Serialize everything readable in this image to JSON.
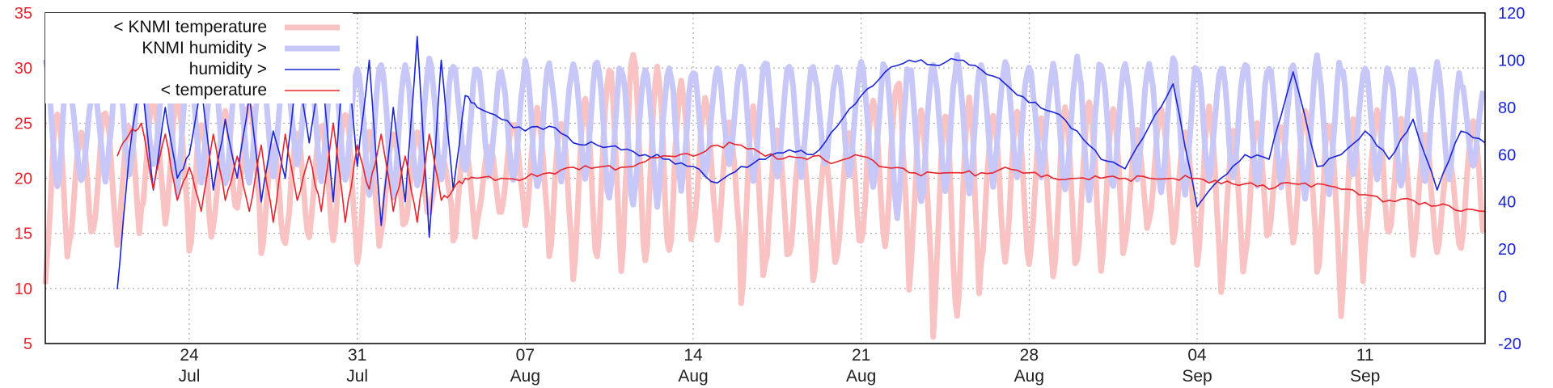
{
  "chart_data": {
    "type": "line",
    "grid": true,
    "legend_position": "top-left",
    "x_range": [
      "2025-07-18",
      "2025-09-16"
    ],
    "y_left": {
      "range": [
        5,
        35
      ],
      "ticks": [
        5,
        10,
        15,
        20,
        25,
        30,
        35
      ],
      "color": "#e8242c"
    },
    "y_right": {
      "range": [
        -20,
        120
      ],
      "ticks": [
        -20,
        0,
        20,
        40,
        60,
        80,
        100,
        120
      ],
      "color": "#1a24d8"
    },
    "x_ticks": [
      {
        "date": "2025-07-24",
        "day": "24",
        "month": "Jul"
      },
      {
        "date": "2025-07-31",
        "day": "31",
        "month": "Jul"
      },
      {
        "date": "2025-08-07",
        "day": "07",
        "month": "Aug"
      },
      {
        "date": "2025-08-14",
        "day": "14",
        "month": "Aug"
      },
      {
        "date": "2025-08-21",
        "day": "21",
        "month": "Aug"
      },
      {
        "date": "2025-08-28",
        "day": "28",
        "month": "Aug"
      },
      {
        "date": "2025-09-04",
        "day": "04",
        "month": "Sep"
      },
      {
        "date": "2025-09-11",
        "day": "11",
        "month": "Sep"
      }
    ],
    "series": [
      {
        "name": "< KNMI temperature",
        "axis": "left",
        "color": "#f9c3c3",
        "width": 7,
        "x": [
          "2025-07-18",
          "2025-07-19",
          "2025-07-20",
          "2025-07-21",
          "2025-07-22",
          "2025-07-23",
          "2025-07-24",
          "2025-07-25",
          "2025-07-26",
          "2025-07-27",
          "2025-07-28",
          "2025-07-29",
          "2025-07-30",
          "2025-07-31",
          "2025-08-01",
          "2025-08-02",
          "2025-08-03",
          "2025-08-04",
          "2025-08-05",
          "2025-08-06",
          "2025-08-07",
          "2025-08-08",
          "2025-08-09",
          "2025-08-10",
          "2025-08-11",
          "2025-08-12",
          "2025-08-13",
          "2025-08-14",
          "2025-08-15",
          "2025-08-16",
          "2025-08-17",
          "2025-08-18",
          "2025-08-19",
          "2025-08-20",
          "2025-08-21",
          "2025-08-22",
          "2025-08-23",
          "2025-08-24",
          "2025-08-25",
          "2025-08-26",
          "2025-08-27",
          "2025-08-28",
          "2025-08-29",
          "2025-08-30",
          "2025-08-31",
          "2025-09-01",
          "2025-09-02",
          "2025-09-03",
          "2025-09-04",
          "2025-09-05",
          "2025-09-06",
          "2025-09-07",
          "2025-09-08",
          "2025-09-09",
          "2025-09-10",
          "2025-09-11",
          "2025-09-12",
          "2025-09-13",
          "2025-09-14",
          "2025-09-15"
        ],
        "min": [
          11,
          14,
          15,
          14,
          17,
          16,
          13,
          16,
          17,
          13,
          14,
          15,
          14,
          12,
          15,
          16,
          17,
          14,
          16,
          17,
          16,
          13,
          11,
          13,
          12,
          12,
          13,
          15,
          14,
          9,
          12,
          13,
          11,
          13,
          14,
          14,
          10,
          6,
          7,
          12,
          12,
          12,
          11,
          13,
          12,
          14,
          16,
          14,
          12,
          10,
          13,
          15,
          14,
          11,
          8,
          14,
          15,
          13,
          13,
          14
        ],
        "max": [
          26,
          24,
          26,
          25,
          27,
          27,
          25,
          26,
          27,
          23,
          24,
          25,
          26,
          24,
          24,
          24,
          22,
          23,
          23,
          25,
          26,
          25,
          27,
          30,
          31,
          30,
          29,
          27,
          25,
          26,
          24,
          23,
          22,
          24,
          27,
          29,
          26,
          26,
          27,
          26,
          26,
          25,
          26,
          27,
          26,
          24,
          26,
          24,
          26,
          24,
          25,
          25,
          26,
          25,
          25,
          26,
          25,
          24,
          22,
          25
        ]
      },
      {
        "name": "KNMI humidity >",
        "axis": "right",
        "color": "#c8c8f8",
        "width": 7,
        "x": [
          "2025-07-18",
          "2025-07-19",
          "2025-07-20",
          "2025-07-21",
          "2025-07-22",
          "2025-07-23",
          "2025-07-24",
          "2025-07-25",
          "2025-07-26",
          "2025-07-27",
          "2025-07-28",
          "2025-07-29",
          "2025-07-30",
          "2025-07-31",
          "2025-08-01",
          "2025-08-02",
          "2025-08-03",
          "2025-08-04",
          "2025-08-05",
          "2025-08-06",
          "2025-08-07",
          "2025-08-08",
          "2025-08-09",
          "2025-08-10",
          "2025-08-11",
          "2025-08-12",
          "2025-08-13",
          "2025-08-14",
          "2025-08-15",
          "2025-08-16",
          "2025-08-17",
          "2025-08-18",
          "2025-08-19",
          "2025-08-20",
          "2025-08-21",
          "2025-08-22",
          "2025-08-23",
          "2025-08-24",
          "2025-08-25",
          "2025-08-26",
          "2025-08-27",
          "2025-08-28",
          "2025-08-29",
          "2025-08-30",
          "2025-08-31",
          "2025-09-01",
          "2025-09-02",
          "2025-09-03",
          "2025-09-04",
          "2025-09-05",
          "2025-09-06",
          "2025-09-07",
          "2025-09-08",
          "2025-09-09",
          "2025-09-10",
          "2025-09-11",
          "2025-09-12",
          "2025-09-13",
          "2025-09-14",
          "2025-09-15"
        ],
        "min": [
          45,
          48,
          50,
          52,
          55,
          45,
          50,
          46,
          48,
          52,
          55,
          50,
          48,
          45,
          42,
          45,
          48,
          52,
          50,
          48,
          45,
          50,
          48,
          40,
          38,
          40,
          45,
          50,
          55,
          48,
          50,
          52,
          55,
          50,
          45,
          35,
          40,
          45,
          42,
          48,
          50,
          52,
          45,
          40,
          45,
          50,
          42,
          45,
          48,
          50,
          45,
          48,
          42,
          45,
          50,
          48,
          45,
          48,
          50,
          55
        ],
        "max": [
          100,
          85,
          90,
          95,
          95,
          100,
          98,
          97,
          95,
          98,
          96,
          98,
          97,
          98,
          96,
          97,
          100,
          98,
          97,
          95,
          98,
          97,
          100,
          98,
          97,
          98,
          96,
          95,
          97,
          98,
          100,
          97,
          96,
          98,
          100,
          98,
          97,
          98,
          100,
          97,
          98,
          96,
          97,
          100,
          98,
          97,
          98,
          100,
          97,
          98,
          100,
          97,
          98,
          100,
          97,
          98,
          96,
          97,
          98,
          90
        ]
      },
      {
        "name": "humidity >",
        "axis": "right",
        "color": "#1a24d8",
        "width": 1.6,
        "x": [
          "2025-07-21T00",
          "2025-07-21T12",
          "2025-07-22",
          "2025-07-22T12",
          "2025-07-23",
          "2025-07-23T12",
          "2025-07-24",
          "2025-07-24T12",
          "2025-07-25",
          "2025-07-25T12",
          "2025-07-26",
          "2025-07-26T12",
          "2025-07-27",
          "2025-07-27T12",
          "2025-07-28",
          "2025-07-28T12",
          "2025-07-29",
          "2025-07-29T12",
          "2025-07-30",
          "2025-07-30T12",
          "2025-07-31",
          "2025-07-31T12",
          "2025-08-01",
          "2025-08-01T12",
          "2025-08-02",
          "2025-08-02T12",
          "2025-08-03",
          "2025-08-03T12",
          "2025-08-04",
          "2025-08-04T12",
          "2025-08-05",
          "2025-08-06",
          "2025-08-07",
          "2025-08-08",
          "2025-08-09",
          "2025-08-10",
          "2025-08-11",
          "2025-08-12",
          "2025-08-13",
          "2025-08-14",
          "2025-08-15",
          "2025-08-16",
          "2025-08-17",
          "2025-08-18",
          "2025-08-19",
          "2025-08-20",
          "2025-08-21",
          "2025-08-22",
          "2025-08-23",
          "2025-08-24",
          "2025-08-25",
          "2025-08-26",
          "2025-08-27",
          "2025-08-28",
          "2025-08-29",
          "2025-08-30",
          "2025-08-31",
          "2025-09-01",
          "2025-09-02",
          "2025-09-03",
          "2025-09-04",
          "2025-09-05",
          "2025-09-06",
          "2025-09-07",
          "2025-09-08",
          "2025-09-09",
          "2025-09-10",
          "2025-09-11",
          "2025-09-12",
          "2025-09-13",
          "2025-09-14",
          "2025-09-15",
          "2025-09-16"
        ],
        "values": [
          3,
          60,
          95,
          45,
          80,
          50,
          60,
          90,
          45,
          75,
          50,
          85,
          40,
          70,
          50,
          98,
          65,
          100,
          40,
          110,
          55,
          100,
          30,
          80,
          40,
          110,
          25,
          100,
          45,
          85,
          80,
          75,
          70,
          72,
          65,
          64,
          62,
          60,
          58,
          55,
          48,
          55,
          58,
          62,
          60,
          72,
          85,
          95,
          100,
          98,
          100,
          96,
          90,
          82,
          78,
          70,
          58,
          54,
          72,
          90,
          38,
          50,
          60,
          58,
          95,
          55,
          60,
          70,
          58,
          75,
          45,
          70,
          65
        ]
      },
      {
        "name": "< temperature",
        "axis": "left",
        "color": "#e8242c",
        "width": 1.6,
        "x": [
          "2025-07-21T00",
          "2025-07-21T12",
          "2025-07-22",
          "2025-07-22T12",
          "2025-07-23",
          "2025-07-23T12",
          "2025-07-24",
          "2025-07-24T12",
          "2025-07-25",
          "2025-07-25T12",
          "2025-07-26",
          "2025-07-26T12",
          "2025-07-27",
          "2025-07-27T12",
          "2025-07-28",
          "2025-07-28T12",
          "2025-07-29",
          "2025-07-29T12",
          "2025-07-30",
          "2025-07-30T12",
          "2025-07-31",
          "2025-07-31T12",
          "2025-08-01",
          "2025-08-01T12",
          "2025-08-02",
          "2025-08-02T12",
          "2025-08-03",
          "2025-08-03T12",
          "2025-08-04",
          "2025-08-04T12",
          "2025-08-05",
          "2025-08-06",
          "2025-08-07",
          "2025-08-08",
          "2025-08-09",
          "2025-08-10",
          "2025-08-11",
          "2025-08-12",
          "2025-08-13",
          "2025-08-14",
          "2025-08-15",
          "2025-08-16",
          "2025-08-17",
          "2025-08-18",
          "2025-08-19",
          "2025-08-20",
          "2025-08-21",
          "2025-08-22",
          "2025-08-23",
          "2025-08-24",
          "2025-08-25",
          "2025-08-26",
          "2025-08-27",
          "2025-08-28",
          "2025-08-29",
          "2025-08-30",
          "2025-08-31",
          "2025-09-01",
          "2025-09-02",
          "2025-09-03",
          "2025-09-04",
          "2025-09-05",
          "2025-09-06",
          "2025-09-07",
          "2025-09-08",
          "2025-09-09",
          "2025-09-10",
          "2025-09-11",
          "2025-09-12",
          "2025-09-13",
          "2025-09-14",
          "2025-09-15",
          "2025-09-16"
        ],
        "values": [
          22,
          24,
          25,
          19,
          24,
          18,
          21,
          17,
          24,
          18,
          22,
          17,
          23,
          16,
          24,
          18,
          22,
          17,
          25,
          16,
          23,
          19,
          24,
          17,
          22,
          16,
          24,
          18,
          19,
          20,
          20,
          20,
          20,
          20.5,
          21,
          21,
          21,
          21.5,
          22,
          22,
          23,
          23,
          22,
          22,
          22,
          21.5,
          22,
          21,
          20.5,
          20.5,
          20.5,
          20.5,
          21,
          20.5,
          20,
          20,
          20,
          20,
          20,
          20,
          20,
          19.5,
          19.5,
          19,
          19.5,
          19.5,
          19,
          18.5,
          18,
          18,
          17.5,
          17,
          17
        ]
      }
    ]
  }
}
